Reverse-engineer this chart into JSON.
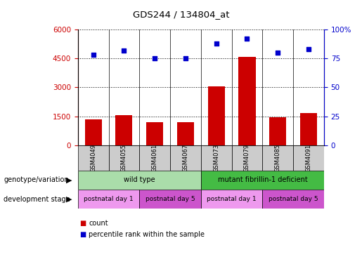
{
  "title": "GDS244 / 134804_at",
  "samples": [
    "GSM4049",
    "GSM4055",
    "GSM4061",
    "GSM4067",
    "GSM4073",
    "GSM4079",
    "GSM4085",
    "GSM4091"
  ],
  "counts": [
    1350,
    1550,
    1200,
    1200,
    3050,
    4600,
    1450,
    1650
  ],
  "percentiles": [
    78,
    82,
    75,
    75,
    88,
    92,
    80,
    83
  ],
  "ylim_left": [
    0,
    6000
  ],
  "ylim_right": [
    0,
    100
  ],
  "yticks_left": [
    0,
    1500,
    3000,
    4500,
    6000
  ],
  "yticks_right": [
    0,
    25,
    50,
    75,
    100
  ],
  "bar_color": "#cc0000",
  "scatter_color": "#0000cc",
  "genotype_groups": [
    {
      "label": "wild type",
      "start": 0,
      "end": 4,
      "color": "#aaddaa"
    },
    {
      "label": "mutant fibrillin-1 deficient",
      "start": 4,
      "end": 8,
      "color": "#44bb44"
    }
  ],
  "stage_groups": [
    {
      "label": "postnatal day 1",
      "start": 0,
      "end": 2,
      "color": "#ee99ee"
    },
    {
      "label": "postnatal day 5",
      "start": 2,
      "end": 4,
      "color": "#cc55cc"
    },
    {
      "label": "postnatal day 1",
      "start": 4,
      "end": 6,
      "color": "#ee99ee"
    },
    {
      "label": "postnatal day 5",
      "start": 6,
      "end": 8,
      "color": "#cc55cc"
    }
  ],
  "xlabel_genotype": "genotype/variation",
  "xlabel_stage": "development stage",
  "legend_count_label": "count",
  "legend_pct_label": "percentile rank within the sample",
  "tick_color_left": "#cc0000",
  "tick_color_right": "#0000cc",
  "sample_box_color": "#cccccc",
  "fig_width": 5.15,
  "fig_height": 3.66,
  "dpi": 100
}
